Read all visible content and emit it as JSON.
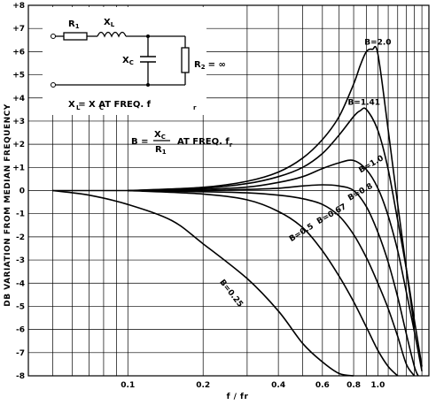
{
  "chart_data": {
    "type": "line",
    "title": "",
    "xlabel": "f / fr",
    "ylabel": "DB VARIATION FROM MEDIAN FREQUENCY",
    "xscale": "log",
    "xlim": [
      0.04,
      1.6
    ],
    "ylim": [
      -8,
      8
    ],
    "grid": true,
    "x_ticks": [
      {
        "value": 0.1,
        "label": "0.1"
      },
      {
        "value": 0.2,
        "label": "0.2"
      },
      {
        "value": 0.4,
        "label": "0.4"
      },
      {
        "value": 0.6,
        "label": "0.6"
      },
      {
        "value": 0.8,
        "label": "0.8"
      },
      {
        "value": 1.0,
        "label": "1.0"
      }
    ],
    "y_ticks": [
      {
        "value": 8,
        "label": "+8"
      },
      {
        "value": 7,
        "label": "+7"
      },
      {
        "value": 6,
        "label": "+6"
      },
      {
        "value": 5,
        "label": "+5"
      },
      {
        "value": 4,
        "label": "+4"
      },
      {
        "value": 3,
        "label": "+3"
      },
      {
        "value": 2,
        "label": "+2"
      },
      {
        "value": 1,
        "label": "+1"
      },
      {
        "value": 0,
        "label": "0"
      },
      {
        "value": -1,
        "label": "-1"
      },
      {
        "value": -2,
        "label": "-2"
      },
      {
        "value": -3,
        "label": "-3"
      },
      {
        "value": -4,
        "label": "-4"
      },
      {
        "value": -5,
        "label": "-5"
      },
      {
        "value": -6,
        "label": "-6"
      },
      {
        "value": -7,
        "label": "-7"
      },
      {
        "value": -8,
        "label": "-8"
      }
    ],
    "series": [
      {
        "name": "B=2.0",
        "x": [
          0.1,
          0.2,
          0.3,
          0.4,
          0.5,
          0.6,
          0.7,
          0.8,
          0.85,
          0.9,
          0.95,
          1.0,
          1.1,
          1.2,
          1.3,
          1.4
        ],
        "y": [
          0.0,
          0.14,
          0.4,
          0.8,
          1.4,
          2.2,
          3.2,
          4.6,
          5.4,
          6.0,
          6.1,
          5.9,
          2.6,
          -0.6,
          -3.4,
          -5.9
        ]
      },
      {
        "name": "B=1.41",
        "x": [
          0.1,
          0.2,
          0.3,
          0.4,
          0.5,
          0.6,
          0.7,
          0.8,
          0.85,
          0.9,
          1.0,
          1.1,
          1.2,
          1.3,
          1.4,
          1.5
        ],
        "y": [
          0.0,
          0.1,
          0.3,
          0.6,
          1.0,
          1.6,
          2.4,
          3.2,
          3.45,
          3.5,
          2.6,
          0.9,
          -1.3,
          -3.4,
          -5.6,
          -7.6
        ]
      },
      {
        "name": "B=1.0",
        "x": [
          0.1,
          0.2,
          0.3,
          0.4,
          0.5,
          0.6,
          0.7,
          0.8,
          0.9,
          1.0,
          1.1,
          1.2,
          1.3,
          1.4,
          1.5
        ],
        "y": [
          0.0,
          0.05,
          0.15,
          0.35,
          0.6,
          0.95,
          1.2,
          1.3,
          0.9,
          0.1,
          -1.1,
          -2.6,
          -4.4,
          -6.1,
          -7.8
        ]
      },
      {
        "name": "B=0.8",
        "x": [
          0.1,
          0.2,
          0.3,
          0.4,
          0.5,
          0.6,
          0.7,
          0.8,
          0.9,
          1.0,
          1.1,
          1.2,
          1.3,
          1.4,
          1.45
        ],
        "y": [
          0.0,
          0.0,
          0.05,
          0.1,
          0.2,
          0.25,
          0.2,
          0.0,
          -0.7,
          -1.8,
          -3.1,
          -4.6,
          -6.2,
          -7.6,
          -8.0
        ]
      },
      {
        "name": "B=0.67",
        "x": [
          0.1,
          0.2,
          0.3,
          0.4,
          0.5,
          0.6,
          0.7,
          0.8,
          0.9,
          1.0,
          1.1,
          1.2,
          1.3,
          1.4
        ],
        "y": [
          0.0,
          -0.05,
          -0.1,
          -0.2,
          -0.35,
          -0.6,
          -1.1,
          -1.9,
          -2.9,
          -4.0,
          -5.1,
          -6.3,
          -7.5,
          -8.0
        ]
      },
      {
        "name": "B=0.5",
        "x": [
          0.1,
          0.2,
          0.3,
          0.4,
          0.5,
          0.6,
          0.7,
          0.8,
          0.9,
          1.0,
          1.1,
          1.2
        ],
        "y": [
          0.0,
          -0.15,
          -0.4,
          -0.9,
          -1.6,
          -2.6,
          -3.7,
          -4.8,
          -5.9,
          -6.9,
          -7.6,
          -8.0
        ]
      },
      {
        "name": "B=0.25",
        "x": [
          0.05,
          0.07,
          0.1,
          0.15,
          0.2,
          0.3,
          0.4,
          0.5,
          0.6,
          0.7,
          0.8
        ],
        "y": [
          0.0,
          -0.2,
          -0.6,
          -1.3,
          -2.3,
          -3.8,
          -5.2,
          -6.6,
          -7.4,
          -7.9,
          -8.0
        ]
      }
    ]
  },
  "series_labels": [
    {
      "series": "B=2.0",
      "text": "B=2.0"
    },
    {
      "series": "B=1.41",
      "text": "B=1.41"
    },
    {
      "series": "B=1.0",
      "text": "B=1.0"
    },
    {
      "series": "B=0.8",
      "text": "B=0.8"
    },
    {
      "series": "B=0.67",
      "text": "B=0.67"
    },
    {
      "series": "B=0.5",
      "text": "B=0.5"
    },
    {
      "series": "B=0.25",
      "text": "B=0.25"
    }
  ],
  "inset": {
    "r1": "R",
    "r1_sub": "1",
    "xl": "X",
    "xl_sub": "L",
    "xc": "X",
    "xc_sub": "C",
    "r2": "R",
    "r2_sub": "2",
    "r2_value": "= ∞",
    "note_line": "X  = X  AT FREQ. f",
    "note_sub_l": "L",
    "note_sub_c": "C",
    "note_sub_r": "r",
    "formula_b": "B =",
    "formula_num": "X",
    "formula_num_sub": "C",
    "formula_den": "R",
    "formula_den_sub": "1",
    "formula_tail": "AT FREQ. f",
    "formula_tail_sub": "r"
  }
}
